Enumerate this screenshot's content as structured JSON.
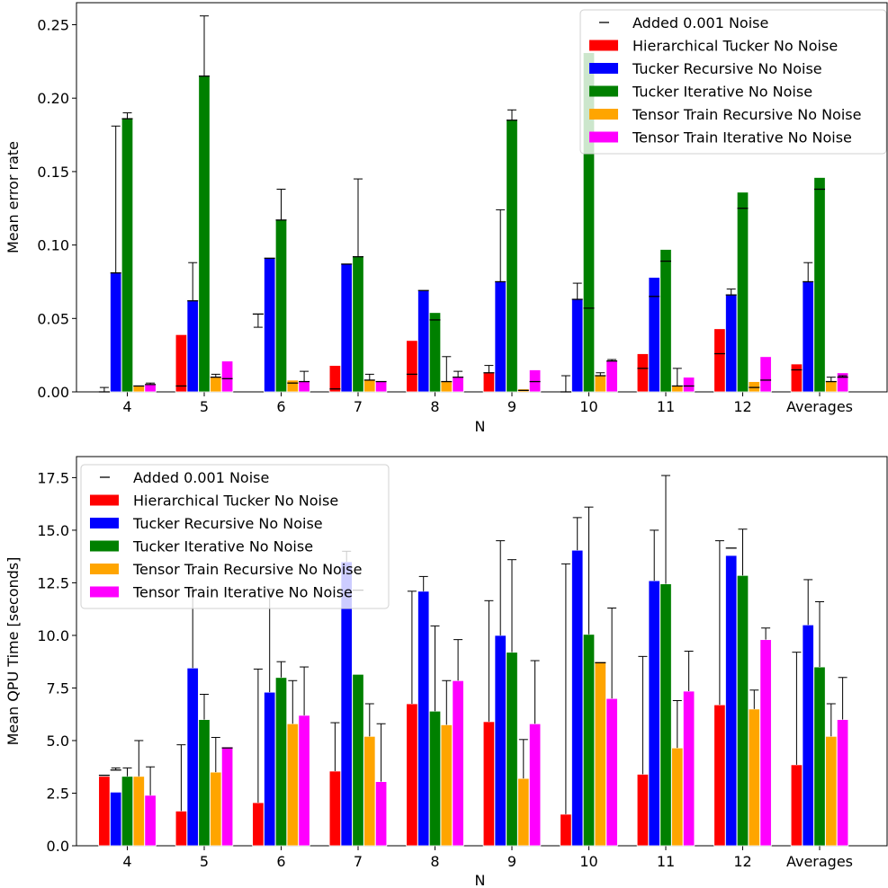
{
  "chart_data": [
    {
      "type": "bar",
      "xlabel": "N",
      "ylabel": "Mean error rate",
      "categories": [
        "4",
        "5",
        "6",
        "7",
        "8",
        "9",
        "10",
        "11",
        "12",
        "Averages"
      ],
      "ylim": [
        0,
        0.265
      ],
      "yticks": [
        0.0,
        0.05,
        0.1,
        0.15,
        0.2,
        0.25
      ],
      "ytick_labels": [
        "0.00",
        "0.05",
        "0.10",
        "0.15",
        "0.20",
        "0.25"
      ],
      "legend_position": "top-right",
      "noise_legend_label": "Added 0.001 Noise",
      "series": [
        {
          "name": "Hierarchical Tucker No Noise",
          "color": "#ff0000",
          "values": [
            0.0,
            0.039,
            0.0,
            0.018,
            0.035,
            0.013,
            0.0,
            0.026,
            0.043,
            0.019
          ],
          "noise_values": [
            0.0,
            0.004,
            0.053,
            0.002,
            0.012,
            0.013,
            0.0,
            0.016,
            0.026,
            0.015
          ],
          "error_tops": [
            0.003,
            null,
            0.044,
            null,
            null,
            0.018,
            0.011,
            null,
            null,
            null
          ]
        },
        {
          "name": "Tucker Recursive No Noise",
          "color": "#0000ff",
          "values": [
            0.081,
            0.062,
            0.091,
            0.087,
            0.069,
            0.075,
            0.063,
            0.078,
            0.066,
            0.075
          ],
          "noise_values": [
            0.081,
            0.062,
            0.091,
            0.087,
            0.069,
            0.075,
            0.063,
            0.065,
            0.066,
            0.075
          ],
          "error_tops": [
            0.181,
            0.088,
            null,
            null,
            null,
            0.124,
            0.074,
            null,
            0.07,
            0.088
          ]
        },
        {
          "name": "Tucker Iterative No Noise",
          "color": "#008000",
          "values": [
            0.186,
            0.215,
            0.117,
            0.092,
            0.054,
            0.185,
            0.231,
            0.097,
            0.136,
            0.146
          ],
          "noise_values": [
            0.186,
            0.215,
            0.117,
            0.092,
            0.049,
            0.185,
            0.057,
            0.089,
            0.125,
            0.138
          ],
          "error_tops": [
            0.19,
            0.256,
            0.138,
            0.145,
            null,
            0.192,
            null,
            null,
            null,
            null
          ]
        },
        {
          "name": "Tensor Train Recursive No Noise",
          "color": "#ffa500",
          "values": [
            0.004,
            0.01,
            0.008,
            0.008,
            0.007,
            0.002,
            0.011,
            0.004,
            0.007,
            0.007
          ],
          "noise_values": [
            0.004,
            0.01,
            0.006,
            0.008,
            0.007,
            0.001,
            0.011,
            0.004,
            0.003,
            0.007
          ],
          "error_tops": [
            null,
            0.012,
            null,
            0.012,
            0.024,
            null,
            0.013,
            0.016,
            null,
            0.01
          ]
        },
        {
          "name": "Tensor Train Iterative No Noise",
          "color": "#ff00ff",
          "values": [
            0.005,
            0.021,
            0.007,
            0.007,
            0.01,
            0.015,
            0.021,
            0.01,
            0.024,
            0.013
          ],
          "noise_values": [
            0.005,
            0.009,
            0.007,
            0.007,
            0.01,
            0.007,
            0.021,
            0.004,
            0.008,
            0.01
          ],
          "error_tops": [
            0.006,
            null,
            0.014,
            null,
            0.014,
            null,
            0.022,
            null,
            null,
            0.011
          ]
        }
      ]
    },
    {
      "type": "bar",
      "xlabel": "N",
      "ylabel": "Mean QPU Time [seconds]",
      "categories": [
        "4",
        "5",
        "6",
        "7",
        "8",
        "9",
        "10",
        "11",
        "12",
        "Averages"
      ],
      "ylim": [
        0,
        18.5
      ],
      "yticks": [
        0.0,
        2.5,
        5.0,
        7.5,
        10.0,
        12.5,
        15.0,
        17.5
      ],
      "ytick_labels": [
        "0.0",
        "2.5",
        "5.0",
        "7.5",
        "10.0",
        "12.5",
        "15.0",
        "17.5"
      ],
      "legend_position": "top-left",
      "noise_legend_label": "Added 0.001 Noise",
      "series": [
        {
          "name": "Hierarchical Tucker No Noise",
          "color": "#ff0000",
          "values": [
            3.3,
            1.65,
            2.05,
            3.55,
            6.75,
            5.9,
            1.5,
            3.4,
            6.7,
            3.85
          ],
          "noise_values": [
            3.35,
            null,
            null,
            null,
            null,
            null,
            null,
            null,
            null,
            null
          ],
          "error_tops": [
            3.35,
            4.8,
            8.4,
            5.85,
            12.1,
            11.65,
            13.4,
            9.0,
            14.5,
            9.2
          ]
        },
        {
          "name": "Tucker Recursive No Noise",
          "color": "#0000ff",
          "values": [
            2.55,
            8.45,
            7.3,
            13.5,
            12.1,
            10.0,
            14.05,
            12.6,
            13.8,
            10.5
          ],
          "noise_values": [
            3.6,
            null,
            null,
            null,
            null,
            null,
            null,
            null,
            14.15,
            null
          ],
          "error_tops": [
            3.7,
            12.1,
            12.2,
            14.0,
            12.8,
            14.5,
            15.6,
            15.0,
            null,
            12.65
          ]
        },
        {
          "name": "Tucker Iterative No Noise",
          "color": "#008000",
          "values": [
            3.3,
            6.0,
            8.0,
            8.15,
            6.4,
            9.2,
            10.05,
            12.45,
            12.85,
            8.5
          ],
          "noise_values": [
            null,
            null,
            null,
            12.15,
            null,
            null,
            null,
            null,
            null,
            null
          ],
          "error_tops": [
            3.7,
            7.2,
            8.75,
            null,
            10.45,
            13.6,
            16.1,
            17.6,
            15.05,
            11.6
          ]
        },
        {
          "name": "Tensor Train Recursive No Noise",
          "color": "#ffa500",
          "values": [
            3.3,
            3.5,
            5.8,
            5.2,
            5.75,
            3.2,
            8.75,
            4.65,
            6.5,
            5.2
          ],
          "noise_values": [
            null,
            null,
            null,
            null,
            null,
            null,
            8.7,
            null,
            null,
            null
          ],
          "error_tops": [
            5.0,
            5.15,
            7.85,
            6.75,
            7.85,
            5.05,
            null,
            6.9,
            7.4,
            6.75
          ]
        },
        {
          "name": "Tensor Train Iterative No Noise",
          "color": "#ff00ff",
          "values": [
            2.4,
            4.7,
            6.2,
            3.05,
            7.85,
            5.8,
            7.0,
            7.35,
            9.8,
            6.0
          ],
          "noise_values": [
            null,
            4.65,
            null,
            null,
            null,
            null,
            null,
            null,
            null,
            null
          ],
          "error_tops": [
            3.75,
            null,
            8.5,
            5.8,
            9.8,
            8.8,
            11.3,
            9.25,
            10.35,
            8.0
          ]
        }
      ]
    }
  ]
}
